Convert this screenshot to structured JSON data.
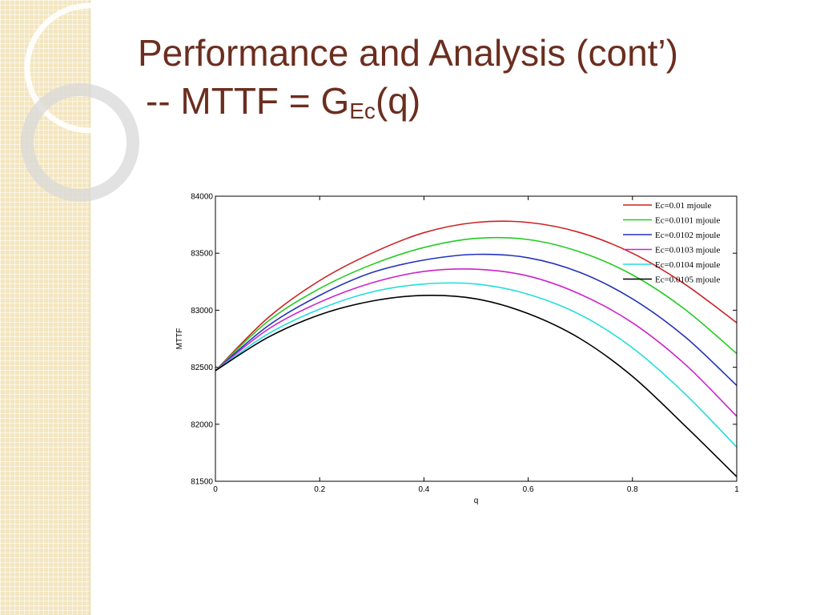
{
  "slide": {
    "title_line1": "Performance and Analysis (cont’)",
    "title_line2_prefix": "-- MTTF = G",
    "title_line2_sub": "Ec",
    "title_line2_suffix": "(q)"
  },
  "colors": {
    "title": "#6b2e1f",
    "side_strip": "#f3e6c0"
  },
  "chart_data": {
    "type": "line",
    "title": "",
    "xlabel": "q",
    "ylabel": "MTTF",
    "xlim": [
      0,
      1
    ],
    "ylim": [
      81500,
      84000
    ],
    "xticks": [
      0,
      0.2,
      0.4,
      0.6,
      0.8,
      1
    ],
    "xtick_labels": [
      "0",
      "0.2",
      "0.4",
      "0.6",
      "0.8",
      "1"
    ],
    "yticks": [
      81500,
      82000,
      82500,
      83000,
      83500,
      84000
    ],
    "ytick_labels": [
      "81500",
      "82000",
      "82500",
      "83000",
      "83500",
      "84000"
    ],
    "grid": false,
    "legend_position": "top-right",
    "x": [
      0,
      0.1,
      0.2,
      0.3,
      0.4,
      0.5,
      0.6,
      0.7,
      0.8,
      0.9,
      1.0
    ],
    "series": [
      {
        "name": "Ec=0.01 mjoule",
        "color": "#cc2222",
        "values": [
          82470,
          82930,
          83260,
          83500,
          83680,
          83770,
          83770,
          83680,
          83500,
          83230,
          82890
        ]
      },
      {
        "name": "Ec=0.0101 mjoule",
        "color": "#22cc22",
        "values": [
          82470,
          82900,
          83190,
          83400,
          83550,
          83630,
          83620,
          83510,
          83310,
          83010,
          82620
        ]
      },
      {
        "name": "Ec=0.0102 mjoule",
        "color": "#2233bb",
        "values": [
          82470,
          82860,
          83130,
          83330,
          83440,
          83490,
          83460,
          83330,
          83100,
          82770,
          82340
        ]
      },
      {
        "name": "Ec=0.0103 mjoule",
        "color": "#cc22cc",
        "values": [
          82470,
          82830,
          83070,
          83240,
          83340,
          83360,
          83300,
          83140,
          82890,
          82530,
          82070
        ]
      },
      {
        "name": "Ec=0.0104 mjoule",
        "color": "#22dddd",
        "values": [
          82470,
          82790,
          83010,
          83160,
          83230,
          83230,
          83140,
          82960,
          82670,
          82270,
          81800
        ]
      },
      {
        "name": "Ec=0.0105 mjoule",
        "color": "#000000",
        "values": [
          82470,
          82760,
          82960,
          83080,
          83130,
          83100,
          82970,
          82750,
          82420,
          81990,
          81540
        ]
      }
    ]
  }
}
